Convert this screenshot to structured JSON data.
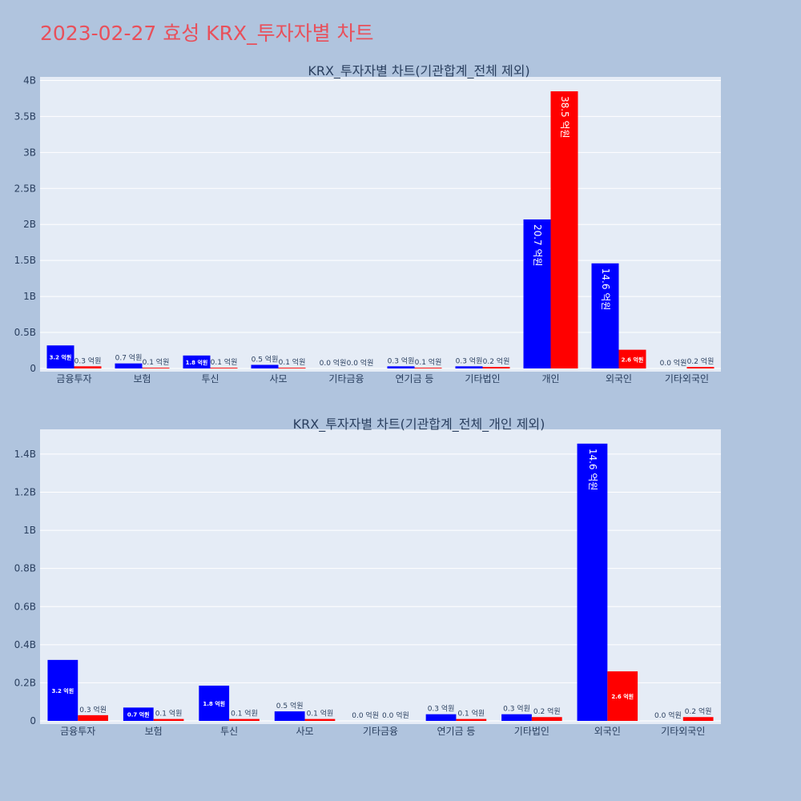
{
  "page": {
    "title": "2023-02-27 효성 KRX_투자자별 차트"
  },
  "colors": {
    "buy": "#0000ff",
    "sell": "#ff0000",
    "plot_bg": "#e5ecf6",
    "paper_bg": "#b0c4de",
    "title": "#e8505b"
  },
  "chart_data": [
    {
      "type": "bar",
      "title": "KRX_투자자별 차트(기관합계_전체 제외)",
      "categories": [
        "금융투자",
        "보험",
        "투신",
        "사모",
        "기타금융",
        "연기금 등",
        "기타법인",
        "개인",
        "외국인",
        "기타외국인"
      ],
      "series": [
        {
          "color": "#0000ff",
          "values": [
            0.32,
            0.07,
            0.18,
            0.05,
            0.0,
            0.03,
            0.03,
            2.07,
            1.46,
            0.0
          ],
          "labels": [
            "3.2 억원",
            "0.7 억원",
            "1.8 억원",
            "0.5 억원",
            "0.0 억원",
            "0.3 억원",
            "0.3 억원",
            "20.7 억원",
            "14.6 억원",
            "0.0 억원"
          ]
        },
        {
          "color": "#ff0000",
          "values": [
            0.03,
            0.01,
            0.01,
            0.01,
            0.0,
            0.01,
            0.02,
            3.85,
            0.26,
            0.02
          ],
          "labels": [
            "0.3 억원",
            "0.1 억원",
            "0.1 억원",
            "0.1 억원",
            "0.0 억원",
            "0.1 억원",
            "0.2 억원",
            "38.5 억원",
            "2.6 억원",
            "0.2 억원"
          ]
        }
      ],
      "yunit": "B",
      "yticks": [
        0,
        0.5,
        1,
        1.5,
        2,
        2.5,
        3,
        3.5,
        4
      ],
      "ytick_labels": [
        "0",
        "0.5B",
        "1B",
        "1.5B",
        "2B",
        "2.5B",
        "3B",
        "3.5B",
        "4B"
      ],
      "ylim": [
        0,
        4.05
      ],
      "grid": true,
      "legend": "none"
    },
    {
      "type": "bar",
      "title": "KRX_투자자별 차트(기관합계_전체_개인 제외)",
      "categories": [
        "금융투자",
        "보험",
        "투신",
        "사모",
        "기타금융",
        "연기금 등",
        "기타법인",
        "외국인",
        "기타외국인"
      ],
      "series": [
        {
          "color": "#0000ff",
          "values": [
            0.32,
            0.07,
            0.185,
            0.05,
            0.0,
            0.035,
            0.035,
            1.455,
            0.0
          ],
          "labels": [
            "3.2 억원",
            "0.7 억원",
            "1.8 억원",
            "0.5 억원",
            "0.0 억원",
            "0.3 억원",
            "0.3 억원",
            "14.6 억원",
            "0.0 억원"
          ]
        },
        {
          "color": "#ff0000",
          "values": [
            0.03,
            0.01,
            0.01,
            0.01,
            0.0,
            0.01,
            0.02,
            0.26,
            0.02
          ],
          "labels": [
            "0.3 억원",
            "0.1 억원",
            "0.1 억원",
            "0.1 억원",
            "0.0 억원",
            "0.1 억원",
            "0.2 억원",
            "2.6 억원",
            "0.2 억원"
          ]
        }
      ],
      "yunit": "B",
      "yticks": [
        0,
        0.2,
        0.4,
        0.6,
        0.8,
        1.0,
        1.2,
        1.4
      ],
      "ytick_labels": [
        "0",
        "0.2B",
        "0.4B",
        "0.6B",
        "0.8B",
        "1B",
        "1.2B",
        "1.4B"
      ],
      "ylim": [
        0,
        1.53
      ],
      "grid": true,
      "legend": "none"
    }
  ]
}
